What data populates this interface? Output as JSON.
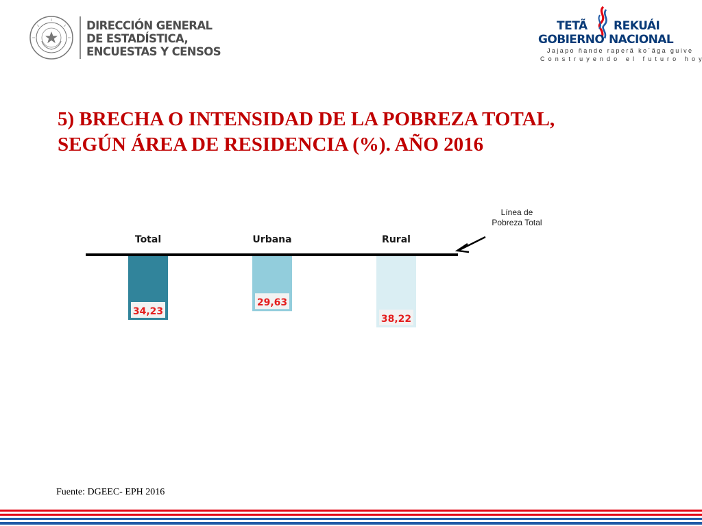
{
  "header": {
    "left_logo": {
      "seal_text": "REPÚBLICA DEL PARAGUAY",
      "lines": [
        "DIRECCIÓN GENERAL",
        "DE ESTADÍSTICA,",
        "ENCUESTAS Y CENSOS"
      ]
    },
    "right_logo": {
      "word1": "TETÃ",
      "word2": "REKUÁI",
      "word3": "GOBIERNO",
      "word4": "NACIONAL",
      "motto_guarani": "Jajapo ñande raperã ko´ãga guive",
      "motto_spanish": "Construyendo el futuro hoy"
    }
  },
  "title_lines": [
    "5) BRECHA O INTENSIDAD DE LA POBREZA TOTAL,",
    "SEGÚN ÁREA DE RESIDENCIA (%). AÑO 2016"
  ],
  "chart_data": {
    "type": "bar",
    "orientation": "downward-from-baseline",
    "title": "5) BRECHA O INTENSIDAD DE LA POBREZA TOTAL, SEGÚN ÁREA DE RESIDENCIA (%). AÑO 2016",
    "categories": [
      "Total",
      "Urbana",
      "Rural"
    ],
    "values": [
      34.23,
      29.63,
      38.22
    ],
    "value_labels": [
      "34,23",
      "29,63",
      "38,22"
    ],
    "bar_colors": [
      "#31849b",
      "#92cddc",
      "#daeef3"
    ],
    "label_color": "#e41e1e",
    "reference_line": {
      "label_lines": [
        "Línea de",
        "Pobreza Total"
      ]
    },
    "ylim": [
      0,
      40
    ],
    "grid": false
  },
  "source": "Fuente: DGEEC-  EPH  2016",
  "colors": {
    "title": "#c00000",
    "stripe_red": "#e30613",
    "stripe_blue": "#1f5aa6"
  }
}
